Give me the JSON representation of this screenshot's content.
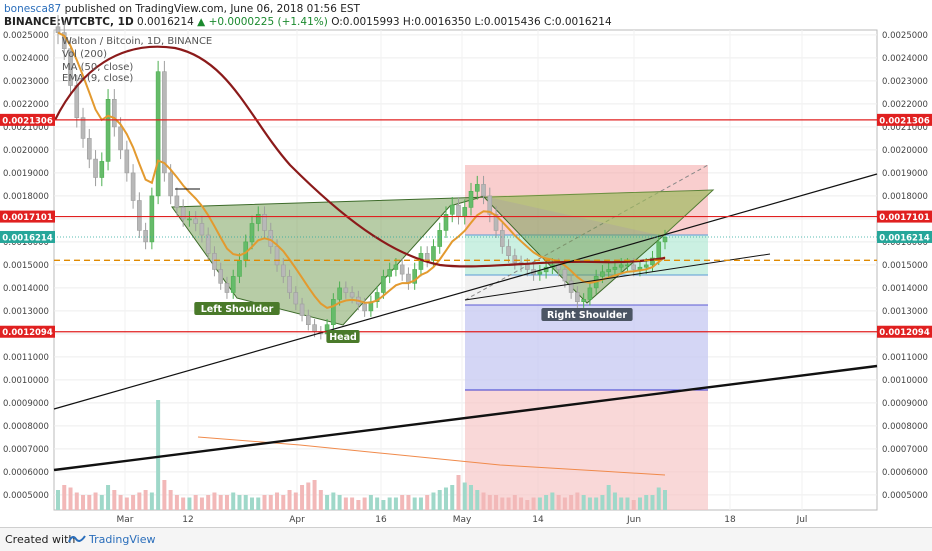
{
  "header": {
    "user": "bonesca87",
    "published": "published on TradingView.com, June 06, 2018 01:56 EST",
    "symbol": "BINANCE:WTCBTC, 1D",
    "last": "0.0016214",
    "change": "▲ +0.0000225 (+1.41%)",
    "ohlc": "O:0.0015993 H:0.0016350 L:0.0015436 C:0.0016214"
  },
  "overlay": {
    "title": "Walton / Bitcoin, 1D, BINANCE",
    "vol": "Vol (200)",
    "ma50": "MA (50, close)",
    "ma9": "EMA (9, close)"
  },
  "footer": {
    "created_with": "Created with",
    "brand": "TradingView"
  },
  "chart_data": {
    "type": "candlestick",
    "symbol": "WTCBTC",
    "interval": "1D",
    "ylim": [
      0.00045,
      0.0026
    ],
    "y_ticks": [
      "0.0005000",
      "0.0006000",
      "0.0007000",
      "0.0008000",
      "0.0009000",
      "0.0010000",
      "0.0011000",
      "0.0012000",
      "0.0013000",
      "0.0014000",
      "0.0015000",
      "0.0016000",
      "0.0017000",
      "0.0018000",
      "0.0019000",
      "0.0020000",
      "0.0021000",
      "0.0022000",
      "0.0023000",
      "0.0024000",
      "0.0025000"
    ],
    "x_ticks": [
      "Mar",
      "12",
      "Apr",
      "16",
      "May",
      "14",
      "Jun",
      "18",
      "Jul"
    ],
    "price_lines": [
      {
        "value": 0.0021306,
        "label": "0.0021306",
        "color": "#e02020"
      },
      {
        "value": 0.0017101,
        "label": "0.0017101",
        "color": "#e02020"
      },
      {
        "value": 0.0012094,
        "label": "0.0012094",
        "color": "#e02020"
      }
    ],
    "current_price": {
      "value": 0.0016214,
      "label": "0.0016214",
      "color": "#26a69a"
    },
    "neckline_level": 0.00152,
    "annotations": [
      "Left Shoulder",
      "Head",
      "Right Shoulder"
    ],
    "closes": [
      0.00251,
      0.00244,
      0.00228,
      0.00214,
      0.00205,
      0.00196,
      0.00188,
      0.00195,
      0.00222,
      0.0021,
      0.002,
      0.0019,
      0.00178,
      0.00165,
      0.0016,
      0.0018,
      0.00234,
      0.0019,
      0.0018,
      0.00175,
      0.0017,
      0.0017,
      0.00168,
      0.00163,
      0.00155,
      0.00148,
      0.00142,
      0.00138,
      0.00145,
      0.00152,
      0.0016,
      0.00168,
      0.00172,
      0.00165,
      0.00158,
      0.0015,
      0.00145,
      0.00138,
      0.00133,
      0.00128,
      0.00124,
      0.00121,
      0.0012,
      0.00124,
      0.00135,
      0.0014,
      0.00138,
      0.00136,
      0.00133,
      0.0013,
      0.00134,
      0.00138,
      0.00145,
      0.00148,
      0.0015,
      0.00146,
      0.00142,
      0.00148,
      0.00155,
      0.00152,
      0.00158,
      0.00165,
      0.00172,
      0.00176,
      0.00171,
      0.00175,
      0.00182,
      0.00185,
      0.0018,
      0.00172,
      0.00165,
      0.00158,
      0.00154,
      0.00151,
      0.0015,
      0.00148,
      0.00146,
      0.00147,
      0.00149,
      0.0015,
      0.00148,
      0.00143,
      0.00138,
      0.00134,
      0.00135,
      0.0014,
      0.00145,
      0.00147,
      0.00148,
      0.00149,
      0.0015,
      0.0015,
      0.00148,
      0.00149,
      0.0015,
      0.00153,
      0.0016,
      0.00162
    ],
    "volumes": [
      0.4,
      0.5,
      0.45,
      0.35,
      0.3,
      0.3,
      0.35,
      0.3,
      0.5,
      0.4,
      0.3,
      0.25,
      0.3,
      0.35,
      0.4,
      0.35,
      2.2,
      0.6,
      0.4,
      0.3,
      0.25,
      0.25,
      0.3,
      0.25,
      0.3,
      0.35,
      0.3,
      0.3,
      0.35,
      0.3,
      0.3,
      0.25,
      0.25,
      0.3,
      0.3,
      0.35,
      0.3,
      0.4,
      0.35,
      0.5,
      0.55,
      0.6,
      0.4,
      0.3,
      0.35,
      0.3,
      0.25,
      0.25,
      0.2,
      0.25,
      0.3,
      0.25,
      0.2,
      0.25,
      0.25,
      0.3,
      0.3,
      0.25,
      0.25,
      0.3,
      0.35,
      0.4,
      0.45,
      0.5,
      0.7,
      0.55,
      0.5,
      0.4,
      0.35,
      0.3,
      0.3,
      0.25,
      0.25,
      0.3,
      0.25,
      0.2,
      0.25,
      0.25,
      0.3,
      0.35,
      0.3,
      0.25,
      0.3,
      0.35,
      0.3,
      0.25,
      0.25,
      0.3,
      0.5,
      0.35,
      0.25,
      0.25,
      0.2,
      0.25,
      0.3,
      0.3,
      0.45,
      0.4
    ]
  }
}
